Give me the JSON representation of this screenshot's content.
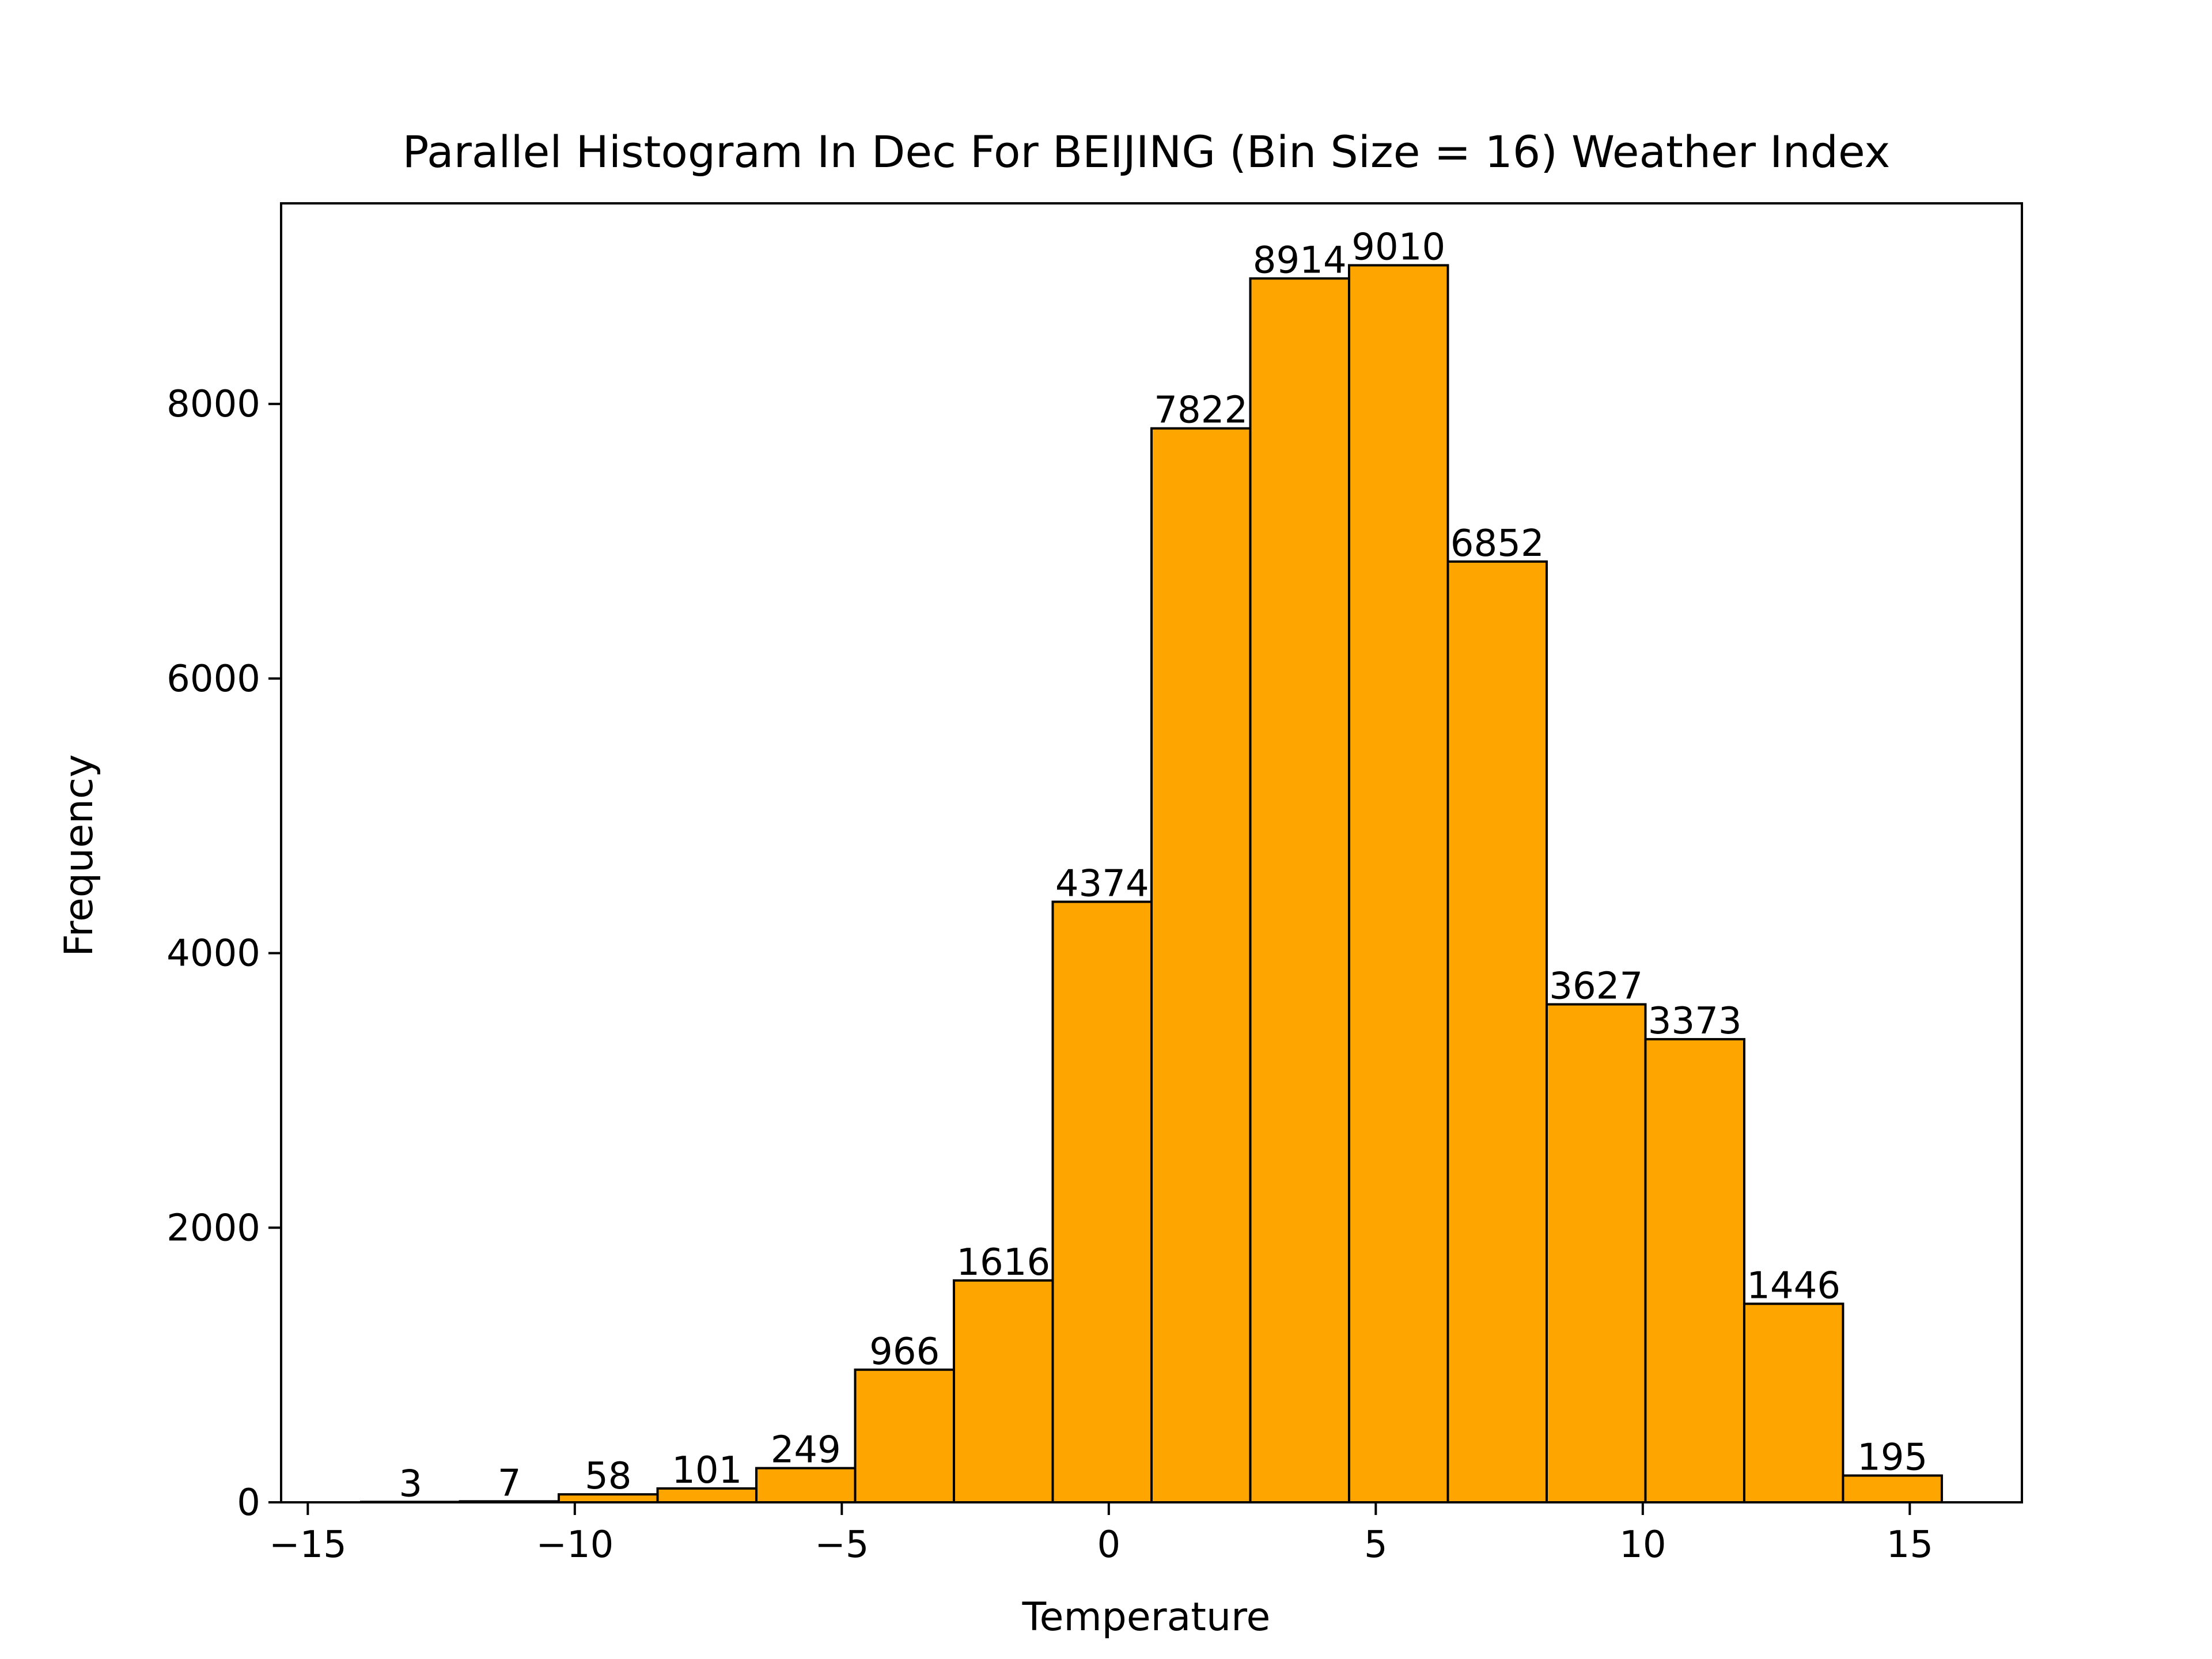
{
  "chart_data": {
    "type": "bar",
    "title": "Parallel Histogram In Dec For BEIJING (Bin Size = 16) Weather Index",
    "xlabel": "Temperature",
    "ylabel": "Frequency",
    "bar_color": "#ffa500",
    "edge_color": "#000000",
    "bins": [
      {
        "start": -14.0,
        "end": -12.15,
        "count": 3
      },
      {
        "start": -12.15,
        "end": -10.3,
        "count": 7
      },
      {
        "start": -10.3,
        "end": -8.45,
        "count": 58
      },
      {
        "start": -8.45,
        "end": -6.6,
        "count": 101
      },
      {
        "start": -6.6,
        "end": -4.75,
        "count": 249
      },
      {
        "start": -4.75,
        "end": -2.9,
        "count": 966
      },
      {
        "start": -2.9,
        "end": -1.05,
        "count": 1616
      },
      {
        "start": -1.05,
        "end": 0.8,
        "count": 4374
      },
      {
        "start": 0.8,
        "end": 2.65,
        "count": 7822
      },
      {
        "start": 2.65,
        "end": 4.5,
        "count": 8914
      },
      {
        "start": 4.5,
        "end": 6.35,
        "count": 9010
      },
      {
        "start": 6.35,
        "end": 8.2,
        "count": 6852
      },
      {
        "start": 8.2,
        "end": 10.05,
        "count": 3627
      },
      {
        "start": 10.05,
        "end": 11.9,
        "count": 3373
      },
      {
        "start": 11.9,
        "end": 13.75,
        "count": 1446
      },
      {
        "start": 13.75,
        "end": 15.6,
        "count": 195
      }
    ],
    "xlim": [
      -15.5,
      17.1
    ],
    "ylim": [
      0,
      9461
    ],
    "xticks": [
      {
        "value": -15,
        "label": "−15"
      },
      {
        "value": -10,
        "label": "−10"
      },
      {
        "value": -5,
        "label": "−5"
      },
      {
        "value": 0,
        "label": "0"
      },
      {
        "value": 5,
        "label": "5"
      },
      {
        "value": 10,
        "label": "10"
      },
      {
        "value": 15,
        "label": "15"
      }
    ],
    "yticks": [
      {
        "value": 0,
        "label": "0"
      },
      {
        "value": 2000,
        "label": "2000"
      },
      {
        "value": 4000,
        "label": "4000"
      },
      {
        "value": 6000,
        "label": "6000"
      },
      {
        "value": 8000,
        "label": "8000"
      }
    ],
    "grid": false,
    "legend": "none"
  }
}
